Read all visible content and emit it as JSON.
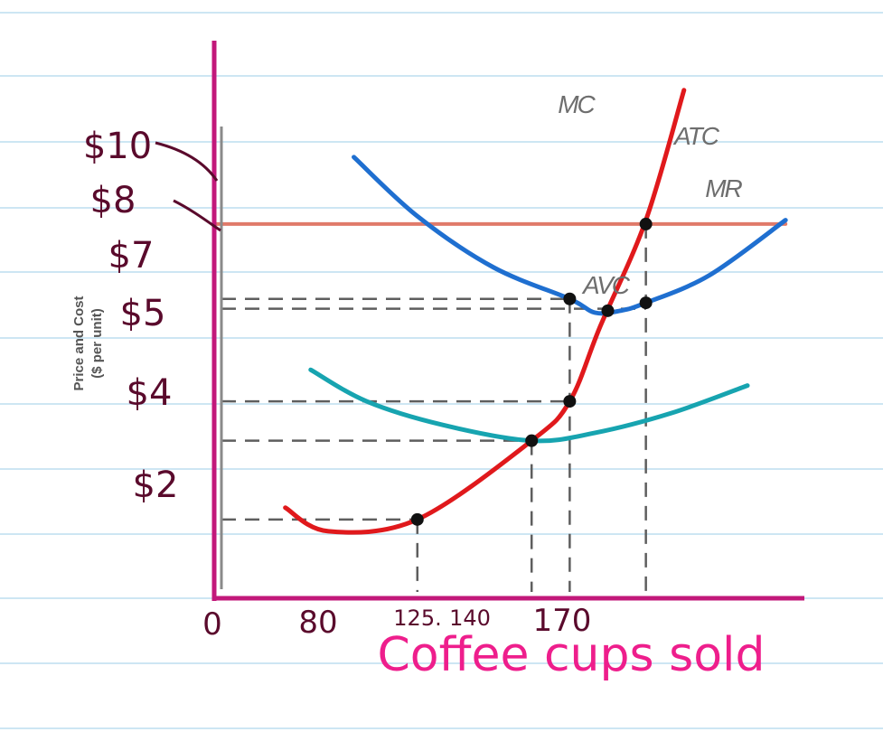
{
  "chart_data": {
    "type": "line",
    "xlabel": "Coffee cups sold",
    "ylabel": "Price and Cost",
    "ylabel_sub": "($ per unit)",
    "x_ticks": [
      {
        "value": 0,
        "label": "0"
      },
      {
        "value": 80,
        "label": "80"
      },
      {
        "value": 125,
        "label": "125."
      },
      {
        "value": 140,
        "label": "140"
      },
      {
        "value": 170,
        "label": "170"
      }
    ],
    "y_ticks": [
      {
        "value": 10,
        "label": "$10"
      },
      {
        "value": 8,
        "label": "$8"
      },
      {
        "value": 7,
        "label": "$7"
      },
      {
        "value": 5,
        "label": "$5"
      },
      {
        "value": 4,
        "label": "$4"
      },
      {
        "value": 2,
        "label": "$2"
      }
    ],
    "series": [
      {
        "name": "MC",
        "color": "#e0191c",
        "points": [
          [
            28,
            2.3
          ],
          [
            45,
            1.7
          ],
          [
            80,
            2.0
          ],
          [
            125,
            4.0
          ],
          [
            140,
            5.0
          ],
          [
            152,
            6.9
          ],
          [
            170,
            9.6
          ],
          [
            185,
            12.9
          ]
        ]
      },
      {
        "name": "ATC",
        "color": "#1f6fd0",
        "points": [
          [
            55,
            11.2
          ],
          [
            80,
            9.7
          ],
          [
            110,
            8.4
          ],
          [
            140,
            7.6
          ],
          [
            150,
            7.25
          ],
          [
            160,
            7.3
          ],
          [
            170,
            7.5
          ],
          [
            195,
            8.2
          ],
          [
            225,
            9.6
          ]
        ]
      },
      {
        "name": "AVC",
        "color": "#17a4b0",
        "points": [
          [
            38,
            5.8
          ],
          [
            60,
            5.0
          ],
          [
            90,
            4.4
          ],
          [
            125,
            4.0
          ],
          [
            150,
            4.2
          ],
          [
            180,
            4.7
          ],
          [
            210,
            5.4
          ]
        ]
      },
      {
        "name": "MR",
        "color": "#e07a6a",
        "points": [
          [
            0,
            9.5
          ],
          [
            225,
            9.5
          ]
        ]
      }
    ],
    "key_points": [
      {
        "x": 80,
        "y": 2.0
      },
      {
        "x": 125,
        "y": 4.0
      },
      {
        "x": 140,
        "y": 5.0
      },
      {
        "x": 140,
        "y": 7.6
      },
      {
        "x": 155,
        "y": 7.3
      },
      {
        "x": 170,
        "y": 7.5
      },
      {
        "x": 170,
        "y": 9.5
      }
    ],
    "guides_h": [
      {
        "y": 2.0,
        "x_to": 80
      },
      {
        "y": 4.0,
        "x_to": 125
      },
      {
        "y": 5.0,
        "x_to": 140
      },
      {
        "y": 7.6,
        "x_to": 140
      },
      {
        "y": 7.35,
        "x_to": 170
      }
    ],
    "guides_v": [
      {
        "x": 80,
        "y_to": 2.0
      },
      {
        "x": 125,
        "y_to": 4.0
      },
      {
        "x": 140,
        "y_to": 7.6
      },
      {
        "x": 170,
        "y_to": 9.5
      }
    ],
    "xlim": [
      0,
      268
    ],
    "ylim": [
      0,
      14.5
    ],
    "colors": {
      "axis": "#c2187a",
      "inner_axis": "#8a8a8a",
      "guides": "#5e5e5e",
      "dots": "#111111",
      "hand_text": "#5a0a2c",
      "xlabel": "#ee1e8c",
      "ruled_lines": "#cde6f3"
    }
  }
}
